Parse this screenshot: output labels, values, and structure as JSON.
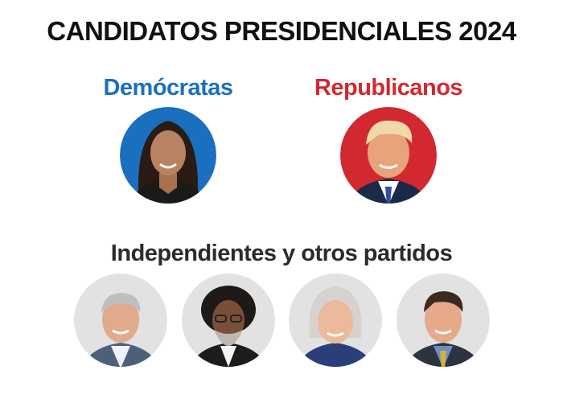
{
  "header": {
    "title": "CANDIDATOS PRESIDENCIALES 2024"
  },
  "parties": [
    {
      "label": "Demócratas"
    },
    {
      "label": "Republicanos"
    }
  ],
  "others": {
    "label": "Independientes y otros partidos"
  }
}
